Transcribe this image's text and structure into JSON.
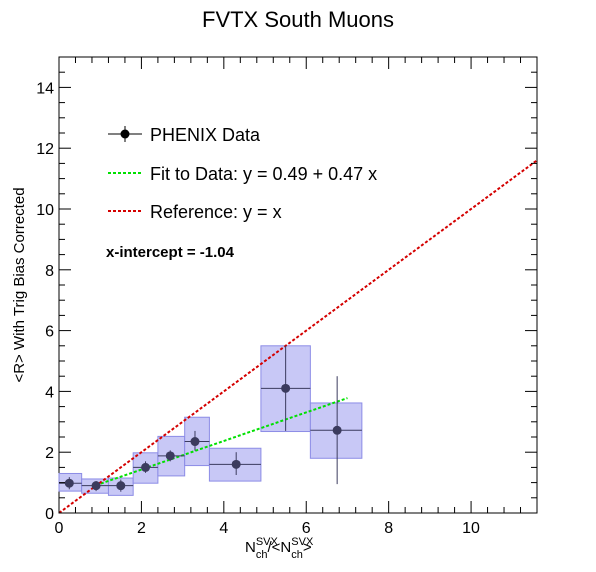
{
  "chart_data": {
    "type": "scatter",
    "title": "FVTX South Muons",
    "xlabel": {
      "base": "N",
      "sub": "ch",
      "sup": "SVX",
      "sep": "/<",
      "end": ">"
    },
    "ylabel": "<R> With Trig Bias Corrected",
    "xlim": [
      0,
      11.6
    ],
    "ylim": [
      0,
      15
    ],
    "xticks": [
      0,
      2,
      4,
      6,
      8,
      10
    ],
    "yticks": [
      0,
      2,
      4,
      6,
      8,
      10,
      12,
      14
    ],
    "colors": {
      "data": "#3b3b5e",
      "box_fill": "#c8c8f6",
      "box_edge": "#8c8ce6",
      "fit": "#00e000",
      "reference": "#d40000"
    },
    "series": [
      {
        "name": "PHENIX Data",
        "points": [
          {
            "x": 0.25,
            "y": 0.98,
            "xlo": 0.0,
            "xhi": 0.55,
            "ylo": 0.72,
            "yhi": 1.3,
            "eylo": 0.78,
            "eyhi": 1.18
          },
          {
            "x": 0.9,
            "y": 0.9,
            "xlo": 0.55,
            "xhi": 1.2,
            "ylo": 0.65,
            "yhi": 1.12,
            "eylo": 0.72,
            "eyhi": 1.05
          },
          {
            "x": 1.5,
            "y": 0.9,
            "xlo": 1.2,
            "xhi": 1.8,
            "ylo": 0.58,
            "yhi": 1.15,
            "eylo": 0.7,
            "eyhi": 1.1
          },
          {
            "x": 2.1,
            "y": 1.5,
            "xlo": 1.8,
            "xhi": 2.4,
            "ylo": 0.98,
            "yhi": 1.98,
            "eylo": 1.32,
            "eyhi": 1.7
          },
          {
            "x": 2.7,
            "y": 1.88,
            "xlo": 2.4,
            "xhi": 3.05,
            "ylo": 1.22,
            "yhi": 2.52,
            "eylo": 1.7,
            "eyhi": 2.06
          },
          {
            "x": 3.3,
            "y": 2.35,
            "xlo": 3.05,
            "xhi": 3.65,
            "ylo": 1.56,
            "yhi": 3.15,
            "eylo": 2.05,
            "eyhi": 2.7
          },
          {
            "x": 4.3,
            "y": 1.6,
            "xlo": 3.65,
            "xhi": 4.9,
            "ylo": 1.05,
            "yhi": 2.13,
            "eylo": 1.25,
            "eyhi": 2.0
          },
          {
            "x": 5.5,
            "y": 4.1,
            "xlo": 4.9,
            "xhi": 6.1,
            "ylo": 2.68,
            "yhi": 5.5,
            "eylo": 2.7,
            "eyhi": 5.5
          },
          {
            "x": 6.75,
            "y": 2.72,
            "xlo": 6.1,
            "xhi": 7.35,
            "ylo": 1.8,
            "yhi": 3.62,
            "eylo": 0.95,
            "eyhi": 4.5
          }
        ]
      },
      {
        "name": "Fit to Data: y = 0.49 + 0.47 x",
        "type": "line",
        "x": [
          0.9,
          7.0
        ],
        "intercept": 0.49,
        "slope": 0.47
      },
      {
        "name": "Reference: y = x",
        "type": "line",
        "x": [
          0,
          11.6
        ],
        "slope": 1,
        "intercept": 0
      }
    ],
    "legend": {
      "position": "upper-left",
      "entries": [
        "PHENIX Data",
        "Fit to Data: y = 0.49 + 0.47 x",
        "Reference: y = x"
      ]
    },
    "annotation": "x-intercept = -1.04",
    "grid": false
  }
}
